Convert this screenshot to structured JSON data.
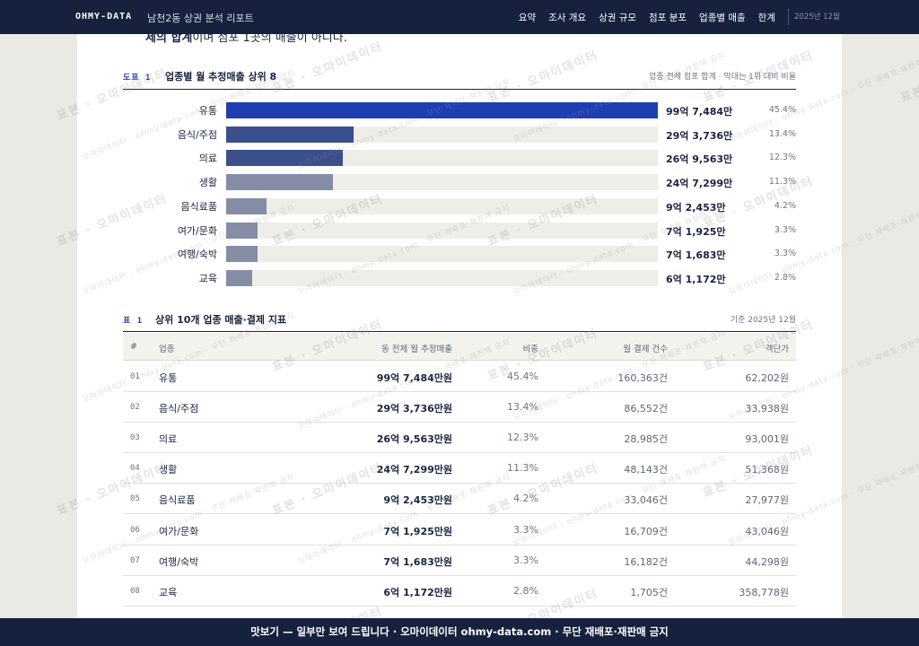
{
  "nav": {
    "brand": "OHMY-DATA",
    "report_title": "남천2동 상권 분석 리포트",
    "links": [
      "요약",
      "조사 개요",
      "상권 규모",
      "점포 분포",
      "업종별 매출",
      "한계"
    ],
    "date": "2025년 12월"
  },
  "intro": {
    "partial_text_bold": "제의 합계",
    "partial_text": "이며 점포 1곳의 매출이 아니다."
  },
  "figure": {
    "label": "도표 1",
    "title": "업종별 월 추정매출 상위 8",
    "note": "업종 전체 점포 합계 · 막대는 1위 대비 비율"
  },
  "chart_data": {
    "type": "bar",
    "orientation": "horizontal",
    "categories": [
      "유통",
      "음식/주점",
      "의료",
      "생활",
      "음식료품",
      "여가/문화",
      "여행/숙박",
      "교육"
    ],
    "value_labels": [
      "99억 7,484만",
      "29억 3,736만",
      "26억 9,563만",
      "24억 7,299만",
      "9억 2,453만",
      "7억 1,925만",
      "7억 1,683만",
      "6억 1,172만"
    ],
    "values": [
      99.7484,
      29.3736,
      26.9563,
      24.7299,
      9.2453,
      7.1925,
      7.1683,
      6.1172
    ],
    "unit": "억원",
    "share_labels": [
      "45.4%",
      "13.4%",
      "12.3%",
      "11.3%",
      "4.2%",
      "3.3%",
      "3.3%",
      "2.8%"
    ],
    "colors": [
      "#1f3eb2",
      "#3a4f8c",
      "#3a4f8c",
      "#858da6",
      "#858da6",
      "#858da6",
      "#858da6",
      "#858da6"
    ],
    "track_color": "#efede7"
  },
  "table": {
    "label": "표 1",
    "title": "상위 10개 업종 매출·결제 지표",
    "note": "기준 2025년 12월",
    "columns": [
      "#",
      "업종",
      "동 전체 월 추정매출",
      "비중",
      "월 결제 건수",
      "객단가"
    ],
    "rows": [
      {
        "idx": "01",
        "name": "유통",
        "sales": "99억 7,484만원",
        "share": "45.4%",
        "count": "160,363건",
        "avg": "62,202원"
      },
      {
        "idx": "02",
        "name": "음식/주점",
        "sales": "29억 3,736만원",
        "share": "13.4%",
        "count": "86,552건",
        "avg": "33,938원"
      },
      {
        "idx": "03",
        "name": "의료",
        "sales": "26억 9,563만원",
        "share": "12.3%",
        "count": "28,985건",
        "avg": "93,001원"
      },
      {
        "idx": "04",
        "name": "생활",
        "sales": "24억 7,299만원",
        "share": "11.3%",
        "count": "48,143건",
        "avg": "51,368원"
      },
      {
        "idx": "05",
        "name": "음식료품",
        "sales": "9억 2,453만원",
        "share": "4.2%",
        "count": "33,046건",
        "avg": "27,977원"
      },
      {
        "idx": "06",
        "name": "여가/문화",
        "sales": "7억 1,925만원",
        "share": "3.3%",
        "count": "16,709건",
        "avg": "43,046원"
      },
      {
        "idx": "07",
        "name": "여행/숙박",
        "sales": "7억 1,683만원",
        "share": "3.3%",
        "count": "16,182건",
        "avg": "44,298원"
      },
      {
        "idx": "08",
        "name": "교육",
        "sales": "6억 1,172만원",
        "share": "2.8%",
        "count": "1,705건",
        "avg": "358,778원"
      }
    ]
  },
  "watermark": {
    "big": "표본 · 오마이데이터",
    "small": "오마이데이터 · ohmy-data.com · 무단 재배포·재판매 금지"
  },
  "footer": {
    "text": "맛보기 — 일부만 보여 드립니다 · 오마이데이터 ohmy-data.com · 무단 재배포·재판매 금지"
  }
}
